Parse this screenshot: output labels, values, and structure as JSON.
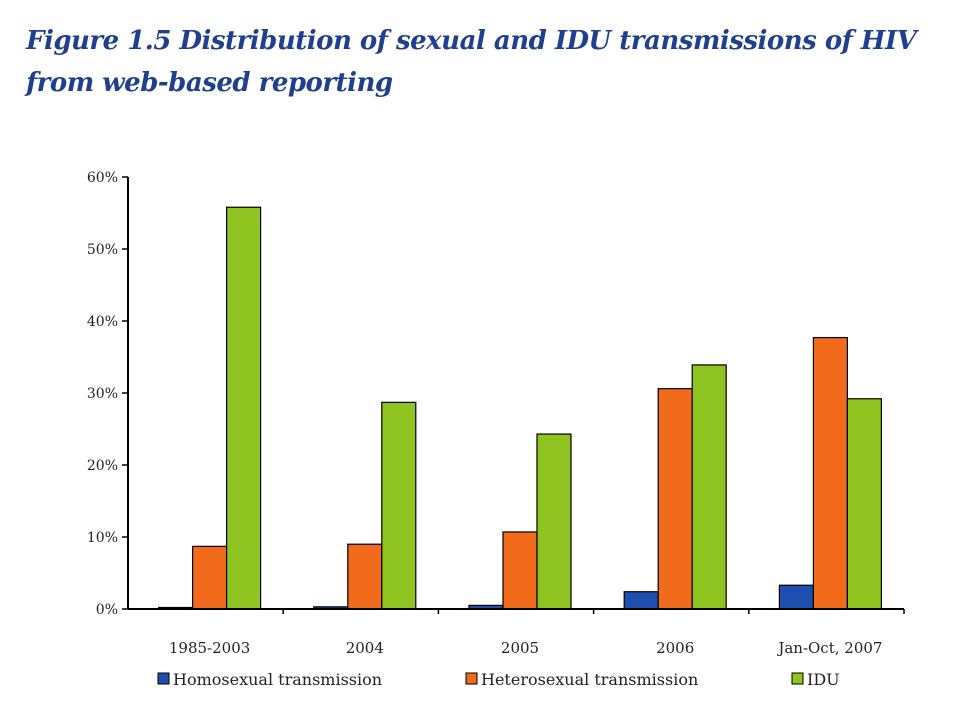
{
  "chart_data": {
    "type": "bar",
    "title": "Figure 1.5 Distribution of sexual and IDU transmissions of HIV from web-based reporting",
    "xlabel": "",
    "ylabel": "",
    "categories": [
      "1985-2003",
      "2004",
      "2005",
      "2006",
      "Jan-Oct, 2007"
    ],
    "series": [
      {
        "name": "Homosexual transmission",
        "color": "#1f4fae",
        "values": [
          0.2,
          0.3,
          0.5,
          2.4,
          3.3
        ]
      },
      {
        "name": "Heterosexual transmission",
        "color": "#f26a1c",
        "values": [
          8.7,
          9.0,
          10.7,
          30.6,
          37.7
        ]
      },
      {
        "name": "IDU",
        "color": "#8fc31f",
        "values": [
          55.8,
          28.7,
          24.3,
          33.9,
          29.2
        ]
      }
    ],
    "yticks": [
      "0%",
      "10%",
      "20%",
      "30%",
      "40%",
      "50%",
      "60%"
    ],
    "ylim": [
      0,
      60
    ],
    "grid": false,
    "legend": "bottom"
  }
}
